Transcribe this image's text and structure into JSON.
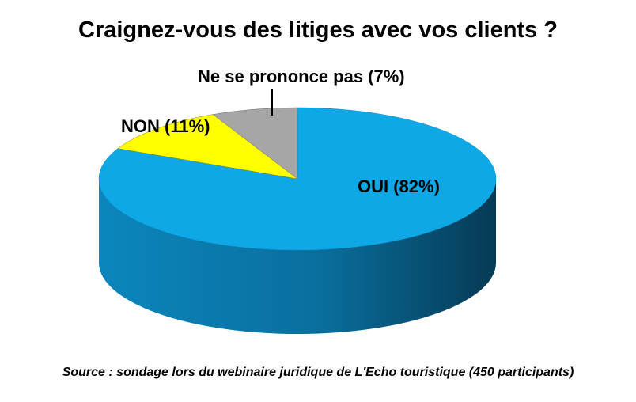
{
  "chart_data": {
    "type": "pie",
    "title": "Craignez-vous des litiges avec vos clients ?",
    "source": "Source : sondage lors du webinaire juridique de L'Echo touristique  (450 participants)",
    "slices": [
      {
        "label": "OUI (82%)",
        "value": 82,
        "color": "#0fa8e6",
        "side_color": "#0a6f9e"
      },
      {
        "label": "NON (11%)",
        "value": 11,
        "color": "#ffff00",
        "side_color": "#b3b300"
      },
      {
        "label": "Ne se prononce pas (7%)",
        "value": 7,
        "color": "#a6a6a6",
        "side_color": "#6e6e6e"
      }
    ],
    "legend": "none",
    "style": "3d-pie"
  }
}
